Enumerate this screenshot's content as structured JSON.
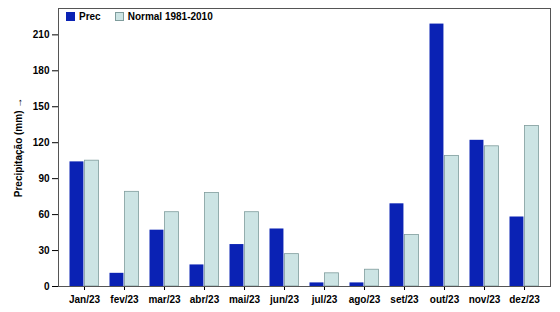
{
  "chart_data": {
    "type": "bar",
    "y_label": "Precipitação (mm)",
    "categories": [
      "Jan/23",
      "fev/23",
      "mar/23",
      "abr/23",
      "mai/23",
      "jun/23",
      "jul/23",
      "ago/23",
      "set/23",
      "out/23",
      "nov/23",
      "dez/23"
    ],
    "series": [
      {
        "name": "Prec",
        "color": "#0a22b4",
        "values": [
          104,
          11,
          47,
          18,
          35,
          48,
          3,
          3,
          69,
          219,
          122,
          58
        ]
      },
      {
        "name": "Normal 1981-2010",
        "color": "#cce4e4",
        "values": [
          105,
          79,
          62,
          78,
          62,
          27,
          11,
          14,
          43,
          109,
          117,
          134
        ]
      }
    ],
    "ylim": [
      0,
      232
    ],
    "yticks": [
      0,
      30,
      60,
      90,
      120,
      150,
      180,
      210
    ],
    "grid": false,
    "legend": "top-left"
  }
}
